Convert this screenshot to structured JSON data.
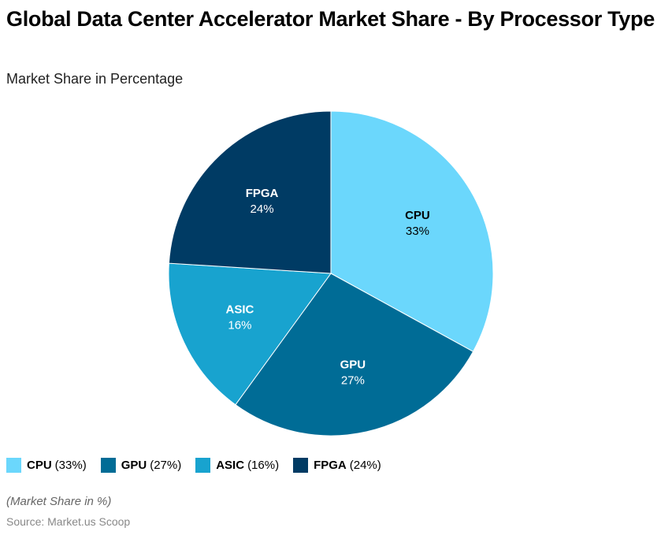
{
  "chart_data": {
    "type": "pie",
    "title": "Global Data Center Accelerator Market Share - By Processor Type",
    "subtitle": "Market Share in Percentage",
    "slices": [
      {
        "label": "CPU",
        "value": 33,
        "value_label": "33%",
        "legend": "(33%)",
        "color": "#6bd7fc",
        "text_color": "#000000"
      },
      {
        "label": "GPU",
        "value": 27,
        "value_label": "27%",
        "legend": "(27%)",
        "color": "#006c96",
        "text_color": "#ffffff"
      },
      {
        "label": "ASIC",
        "value": 16,
        "value_label": "16%",
        "legend": "(16%)",
        "color": "#18a3cf",
        "text_color": "#ffffff"
      },
      {
        "label": "FPGA",
        "value": 24,
        "value_label": "24%",
        "legend": "(24%)",
        "color": "#003b64",
        "text_color": "#ffffff"
      }
    ],
    "legend_position": "bottom-left",
    "note": "(Market Share in %)",
    "source": "Source: Market.us Scoop"
  }
}
